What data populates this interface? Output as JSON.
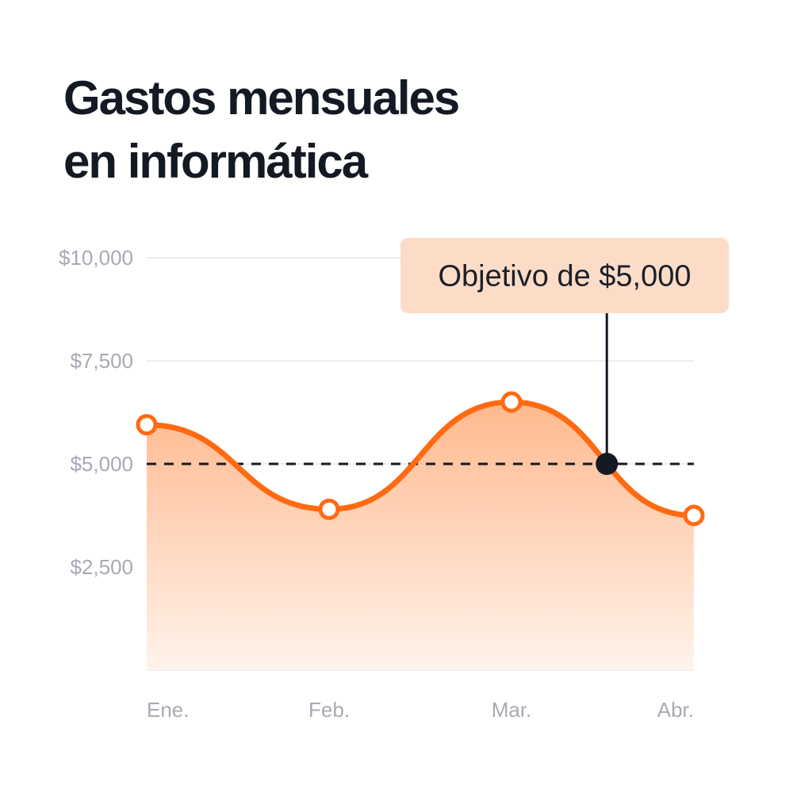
{
  "title_lines": [
    "Gastos mensuales",
    "en informática"
  ],
  "colors": {
    "title": "#141a24",
    "line": "#ff6a13",
    "fill_top": "#ffb98e",
    "fill_bottom": "#fff3ec",
    "grid": "#ececf0",
    "axis_text": "#a9a9b4",
    "target_line": "#141a24",
    "callout_bg": "#fddcc7",
    "callout_text": "#1b2029"
  },
  "chart_data": {
    "type": "area",
    "title": "Gastos mensuales en informática",
    "categories": [
      "Ene.",
      "Feb.",
      "Mar.",
      "Abr."
    ],
    "series": [
      {
        "values": [
          5950,
          3900,
          6500,
          3750
        ]
      }
    ],
    "ylim": [
      0,
      10000
    ],
    "yticks": [
      2500,
      5000,
      7500,
      10000
    ],
    "ytick_labels": [
      "$2,500",
      "$5,000",
      "$7,500",
      "$10,000"
    ],
    "grid": true,
    "smooth": true,
    "target": {
      "value": 5000,
      "label": "Objetivo de $5,000"
    }
  }
}
